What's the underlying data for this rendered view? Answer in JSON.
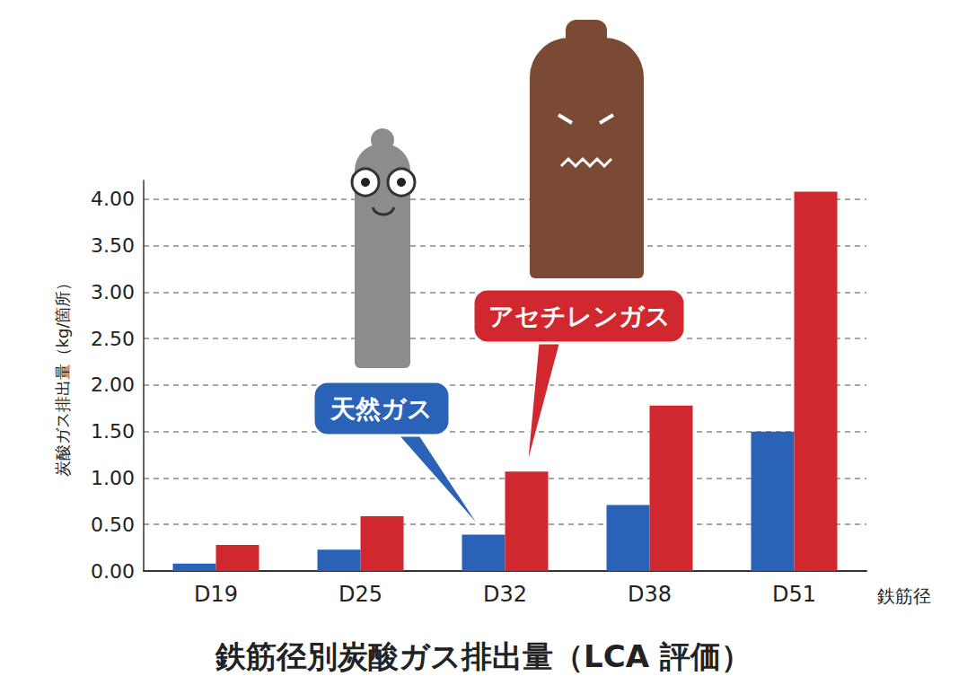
{
  "chart_data": {
    "type": "bar",
    "title": "鉄筋径別炭酸ガス排出量（LCA 評価）",
    "x_label": "鉄筋径",
    "y_label": "炭酸ガス排出量（kg/箇所）",
    "categories": [
      "D19",
      "D25",
      "D32",
      "D38",
      "D51"
    ],
    "series": [
      {
        "name": "天然ガス",
        "color": "#2a62b8",
        "values": [
          0.08,
          0.23,
          0.39,
          0.71,
          1.5
        ]
      },
      {
        "name": "アセチレンガス",
        "color": "#d0282e",
        "values": [
          0.28,
          0.59,
          1.07,
          1.78,
          4.08
        ]
      }
    ],
    "ylim": [
      0,
      4.2
    ],
    "yticks": [
      {
        "value": 0,
        "label": "0.00"
      },
      {
        "value": 0.5,
        "label": "0.50"
      },
      {
        "value": 1,
        "label": "1.00"
      },
      {
        "value": 1.5,
        "label": "1.50"
      },
      {
        "value": 2,
        "label": "2.00"
      },
      {
        "value": 2.5,
        "label": "2.50"
      },
      {
        "value": 3,
        "label": "3.00"
      },
      {
        "value": 3.5,
        "label": "3.50"
      },
      {
        "value": 4,
        "label": "4.00"
      }
    ],
    "grid": true
  }
}
